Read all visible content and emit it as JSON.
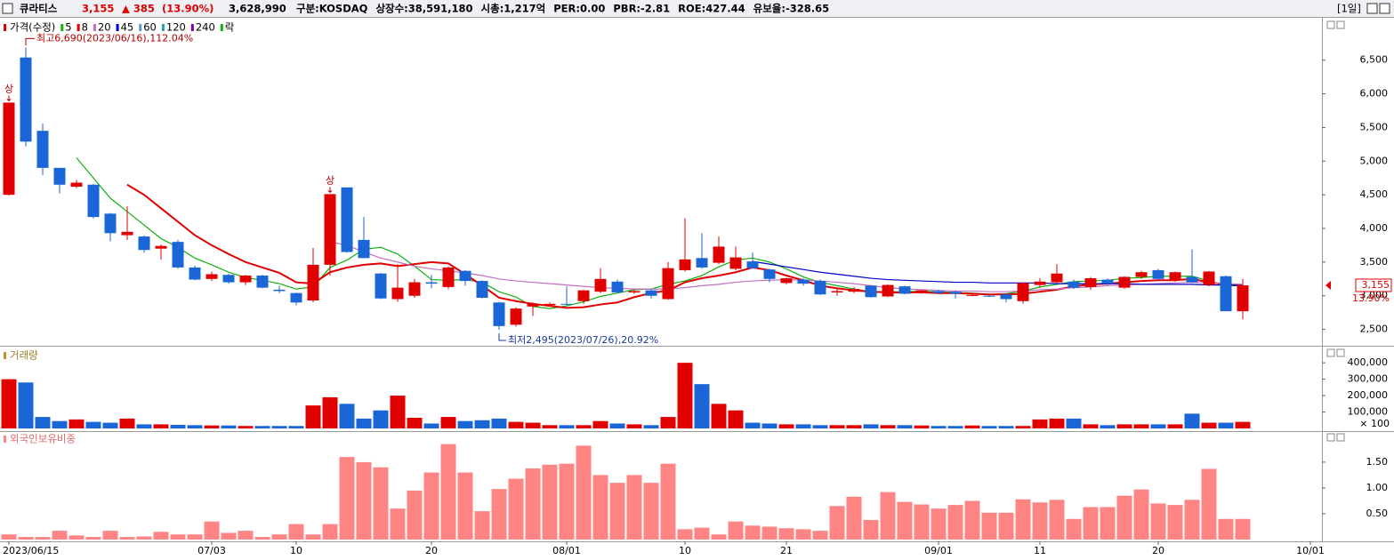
{
  "header": {
    "name": "큐라티스",
    "price": "3,155",
    "change": "▲ 385",
    "change_pct": "(13.90%)",
    "volume": "3,628,990",
    "fields": [
      "구분:KOSDAQ",
      "상장수:38,591,180",
      "시총:1,217억",
      "PER:0.00",
      "PBR:-2.81",
      "ROE:427.44",
      "유보율:-328.65"
    ],
    "period": "[1일]"
  },
  "chart_data": [
    {
      "type": "candlestick",
      "title": "가격(수정)",
      "up_color": "#e00000",
      "down_color": "#1a66d6",
      "grid": false,
      "categories": [
        "2023/06/15",
        null,
        null,
        null,
        null,
        null,
        null,
        null,
        null,
        null,
        null,
        null,
        "07/03",
        null,
        null,
        null,
        null,
        "10",
        null,
        null,
        null,
        null,
        null,
        null,
        null,
        "20",
        null,
        null,
        null,
        null,
        null,
        null,
        null,
        "08/01",
        null,
        null,
        null,
        null,
        null,
        null,
        "10",
        null,
        null,
        null,
        null,
        null,
        "21",
        null,
        null,
        null,
        null,
        null,
        null,
        null,
        null,
        "09/01",
        null,
        null,
        null,
        null,
        null,
        "11",
        null,
        null,
        null,
        null,
        null,
        null,
        "20",
        null,
        null,
        null,
        null,
        null,
        null,
        null,
        null,
        "10/01"
      ],
      "open": [
        4500,
        6540,
        5450,
        4900,
        4620,
        4650,
        4220,
        3900,
        3880,
        3700,
        3800,
        3420,
        3250,
        3310,
        3200,
        3300,
        3090,
        3040,
        2930,
        3460,
        4610,
        3830,
        3330,
        2950,
        3000,
        3200,
        3130,
        3370,
        3220,
        2900,
        2570,
        2840,
        2860,
        2880,
        2920,
        3060,
        3210,
        3050,
        3080,
        2950,
        3380,
        3560,
        3490,
        3400,
        3510,
        3390,
        3190,
        3240,
        3220,
        3050,
        3060,
        3150,
        2990,
        3140,
        3050,
        3070,
        3060,
        3000,
        3000,
        3020,
        2920,
        3160,
        3200,
        3210,
        3130,
        3240,
        3120,
        3280,
        3380,
        3230,
        3280,
        3160,
        3290,
        2770,
        null,
        null,
        null,
        null
      ],
      "high": [
        5870,
        6690,
        5560,
        4900,
        4720,
        4660,
        4230,
        4330,
        3900,
        3760,
        3830,
        3450,
        3360,
        3330,
        3310,
        3310,
        3150,
        3050,
        3710,
        4510,
        4610,
        4170,
        3340,
        3470,
        3250,
        3310,
        3440,
        3380,
        3230,
        2910,
        2830,
        2900,
        2900,
        3140,
        3090,
        3410,
        3240,
        3090,
        3100,
        3500,
        4150,
        3930,
        3880,
        3730,
        3640,
        3400,
        3270,
        3260,
        3240,
        3100,
        3130,
        3160,
        3170,
        3150,
        3090,
        3090,
        3080,
        3030,
        3020,
        3030,
        3200,
        3260,
        3470,
        3240,
        3280,
        3260,
        3290,
        3370,
        3400,
        3360,
        3690,
        3370,
        3300,
        3250,
        null,
        null,
        null,
        null
      ],
      "low": [
        4490,
        5220,
        4790,
        4520,
        4600,
        4150,
        3810,
        3830,
        3640,
        3540,
        3400,
        3230,
        3220,
        3180,
        3160,
        3110,
        3040,
        2860,
        2900,
        3300,
        3640,
        3560,
        2950,
        2910,
        2970,
        3110,
        3100,
        3150,
        2960,
        2495,
        2540,
        2700,
        2840,
        2860,
        2880,
        3040,
        3040,
        3030,
        2960,
        2940,
        3360,
        3400,
        3470,
        3380,
        3400,
        3200,
        3170,
        3150,
        3010,
        3000,
        3040,
        2970,
        2980,
        3020,
        3030,
        3020,
        2960,
        2990,
        2980,
        2900,
        2880,
        3120,
        3190,
        3100,
        3090,
        3160,
        3100,
        3250,
        3230,
        3210,
        3190,
        3140,
        2770,
        2650,
        null,
        null,
        null,
        null
      ],
      "close": [
        5870,
        5290,
        4900,
        4650,
        4680,
        4170,
        3930,
        3950,
        3680,
        3740,
        3420,
        3240,
        3320,
        3200,
        3300,
        3120,
        3070,
        2900,
        3460,
        4510,
        3650,
        3560,
        2960,
        3120,
        3200,
        3180,
        3420,
        3220,
        2970,
        2550,
        2810,
        2880,
        2880,
        2870,
        3080,
        3250,
        3050,
        3070,
        3000,
        3410,
        3540,
        3420,
        3730,
        3570,
        3410,
        3250,
        3260,
        3180,
        3020,
        3070,
        3100,
        2980,
        3160,
        3030,
        3080,
        3040,
        3030,
        3010,
        2990,
        2950,
        3190,
        3210,
        3330,
        3120,
        3260,
        3180,
        3280,
        3350,
        3250,
        3350,
        3200,
        3360,
        2770,
        3155,
        null,
        null,
        null,
        null
      ],
      "series": [
        {
          "name": "5",
          "color": "#10b010",
          "values": [
            null,
            null,
            null,
            null,
            5050,
            4750,
            4450,
            4250,
            4050,
            3850,
            3720,
            3560,
            3460,
            3350,
            3270,
            3230,
            3180,
            3100,
            3130,
            3420,
            3530,
            3690,
            3720,
            3620,
            3440,
            3240,
            3230,
            3240,
            3200,
            3060,
            2980,
            2840,
            2810,
            2850,
            2910,
            2990,
            3040,
            3090,
            3100,
            3170,
            3220,
            3300,
            3430,
            3530,
            3560,
            3500,
            3400,
            3280,
            3200,
            3150,
            3100,
            3060,
            3060,
            3060,
            3070,
            3060,
            3050,
            3040,
            3020,
            3030,
            3070,
            3130,
            3170,
            3210,
            3220,
            3230,
            3260,
            3270,
            3290,
            3290,
            3290,
            3220,
            3150,
            3150,
            null,
            null,
            null,
            null
          ]
        },
        {
          "name": "8",
          "color": "#e00000",
          "values": [
            null,
            null,
            null,
            null,
            null,
            null,
            null,
            4650,
            4500,
            4300,
            4100,
            3900,
            3750,
            3620,
            3500,
            3420,
            3340,
            3200,
            3180,
            3350,
            3420,
            3460,
            3480,
            3440,
            3470,
            3500,
            3480,
            3320,
            3150,
            2970,
            2920,
            2880,
            2850,
            2820,
            2830,
            2870,
            2900,
            2980,
            3040,
            3080,
            3200,
            3260,
            3300,
            3350,
            3420,
            3380,
            3300,
            3230,
            3150,
            3110,
            3080,
            3060,
            3050,
            3050,
            3050,
            3040,
            3040,
            3030,
            3020,
            3020,
            3030,
            3060,
            3090,
            3140,
            3170,
            3180,
            3200,
            3220,
            3230,
            3230,
            3250,
            3200,
            3170,
            3160,
            null,
            null,
            null,
            null
          ]
        },
        {
          "name": "20",
          "color": "#c070c0",
          "values": [
            null,
            null,
            null,
            null,
            null,
            null,
            null,
            null,
            null,
            null,
            null,
            null,
            null,
            null,
            null,
            null,
            null,
            null,
            null,
            3800,
            3750,
            3650,
            3560,
            3500,
            3440,
            3400,
            3370,
            3340,
            3300,
            3250,
            3220,
            3200,
            3180,
            3160,
            3140,
            3120,
            3110,
            3100,
            3100,
            3100,
            3120,
            3150,
            3170,
            3200,
            3220,
            3230,
            3240,
            3230,
            3220,
            3200,
            3180,
            3150,
            3120,
            3100,
            3090,
            3080,
            3070,
            3070,
            3060,
            3060,
            3070,
            3090,
            3100,
            3120,
            3130,
            3150,
            3160,
            3170,
            3180,
            3190,
            3200,
            3190,
            3180,
            3170,
            null,
            null,
            null,
            null
          ]
        },
        {
          "name": "45",
          "color": "#0000c8",
          "values": [
            null,
            null,
            null,
            null,
            null,
            null,
            null,
            null,
            null,
            null,
            null,
            null,
            null,
            null,
            null,
            null,
            null,
            null,
            null,
            null,
            null,
            null,
            null,
            null,
            null,
            null,
            null,
            null,
            null,
            null,
            null,
            null,
            null,
            null,
            null,
            null,
            null,
            null,
            null,
            null,
            null,
            null,
            null,
            null,
            3510,
            3470,
            3430,
            3390,
            3350,
            3320,
            3290,
            3260,
            3240,
            3230,
            3220,
            3210,
            3200,
            3200,
            3190,
            3190,
            3190,
            3190,
            3180,
            3180,
            3180,
            3180,
            3180,
            3170,
            3170,
            3170,
            3170,
            3160,
            3160,
            3150,
            null,
            null,
            null,
            null
          ]
        },
        {
          "name": "60",
          "color": "#5a9ac8"
        },
        {
          "name": "120",
          "color": "#2aa0a0"
        },
        {
          "name": "240",
          "color": "#8000a8"
        }
      ],
      "extra_legend": "락",
      "ylim": [
        2270,
        7130
      ],
      "yticks": [
        {
          "value": 2500,
          "label": "2,500"
        },
        {
          "value": 3000,
          "label": "3,000"
        },
        {
          "value": 3500,
          "label": "3,500"
        },
        {
          "value": 4000,
          "label": "4,000"
        },
        {
          "value": 4500,
          "label": "4,500"
        },
        {
          "value": 5000,
          "label": "5,000"
        },
        {
          "value": 5500,
          "label": "5,500"
        },
        {
          "value": 6000,
          "label": "6,000"
        },
        {
          "value": 6500,
          "label": "6,500"
        }
      ],
      "annotations": [
        {
          "text": "최고6,690(2023/06/16),112.04%",
          "index": 1,
          "at": "high"
        },
        {
          "text": "최저2,495(2023/07/26),20.92%",
          "index": 29,
          "at": "low"
        },
        {
          "text": "상",
          "index": 0,
          "at": "high"
        },
        {
          "text": "상",
          "index": 19,
          "at": "high"
        }
      ],
      "last_label": "3,155",
      "last_change": "13.90%"
    },
    {
      "type": "volume",
      "title": "거래량",
      "values": [
        300000,
        280000,
        70000,
        45000,
        55000,
        40000,
        35000,
        60000,
        25000,
        25000,
        22000,
        20000,
        18000,
        18000,
        15000,
        15000,
        15000,
        15000,
        140000,
        190000,
        150000,
        60000,
        110000,
        200000,
        65000,
        30000,
        70000,
        45000,
        50000,
        60000,
        40000,
        35000,
        20000,
        20000,
        20000,
        45000,
        30000,
        25000,
        20000,
        70000,
        400000,
        270000,
        150000,
        110000,
        35000,
        30000,
        25000,
        25000,
        20000,
        20000,
        20000,
        25000,
        20000,
        20000,
        18000,
        15000,
        15000,
        18000,
        15000,
        15000,
        15000,
        55000,
        60000,
        60000,
        25000,
        20000,
        25000,
        25000,
        25000,
        25000,
        90000,
        35000,
        35000,
        40000
      ],
      "ylim": [
        0,
        455000
      ],
      "yticks": [
        {
          "value": 100000,
          "label": "100,000"
        },
        {
          "value": 200000,
          "label": "200,000"
        },
        {
          "value": 300000,
          "label": "300,000"
        },
        {
          "value": 400000,
          "label": "400,000"
        }
      ],
      "unit_label": "× 100"
    },
    {
      "type": "bar",
      "title": "외국인보유비중",
      "color": "#ff8585",
      "values": [
        0.1,
        0.05,
        0.05,
        0.17,
        0.08,
        0.05,
        0.17,
        0.05,
        0.06,
        0.15,
        0.1,
        0.1,
        0.35,
        0.13,
        0.17,
        0.05,
        0.1,
        0.3,
        0.1,
        0.3,
        1.6,
        1.5,
        1.4,
        0.6,
        0.95,
        1.3,
        1.85,
        1.3,
        0.55,
        0.98,
        1.18,
        1.38,
        1.45,
        1.47,
        1.82,
        1.25,
        1.1,
        1.25,
        1.1,
        1.47,
        0.2,
        0.23,
        0.1,
        0.35,
        0.27,
        0.25,
        0.22,
        0.2,
        0.17,
        0.65,
        0.83,
        0.38,
        0.92,
        0.73,
        0.68,
        0.6,
        0.67,
        0.75,
        0.52,
        0.52,
        0.78,
        0.72,
        0.77,
        0.4,
        0.63,
        0.63,
        0.85,
        0.97,
        0.7,
        0.67,
        0.77,
        1.37,
        0.4,
        0.4
      ],
      "ylim": [
        0,
        2.05
      ],
      "yticks": [
        {
          "value": 0.5,
          "label": "0.50"
        },
        {
          "value": 1,
          "label": "1.00"
        },
        {
          "value": 1.5,
          "label": "1.50"
        }
      ]
    }
  ]
}
